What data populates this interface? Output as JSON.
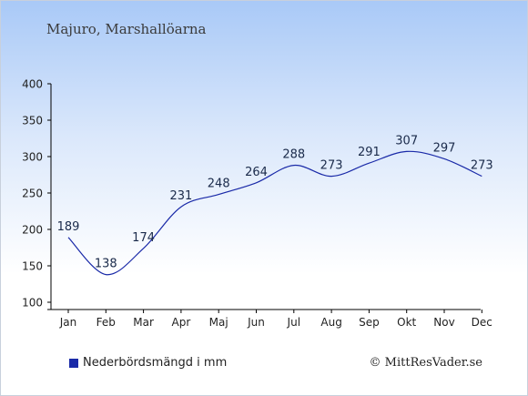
{
  "title": "Majuro, Marshallöarna",
  "credit": "© MittResVader.se",
  "chart_data": {
    "type": "line",
    "categories": [
      "Jan",
      "Feb",
      "Mar",
      "Apr",
      "Maj",
      "Jun",
      "Jul",
      "Aug",
      "Sep",
      "Okt",
      "Nov",
      "Dec"
    ],
    "series": [
      {
        "name": "Nederbördsmängd i mm",
        "values": [
          189,
          138,
          174,
          231,
          248,
          264,
          288,
          273,
          291,
          307,
          297,
          273
        ]
      }
    ],
    "yticks": [
      100,
      150,
      200,
      250,
      300,
      350,
      400
    ],
    "ylim": [
      100,
      400
    ],
    "grid": false,
    "legend": "bottom-left",
    "colors": {
      "line": "#1a2aa8",
      "label": "#1a2a4a",
      "axis": "#000000"
    }
  }
}
